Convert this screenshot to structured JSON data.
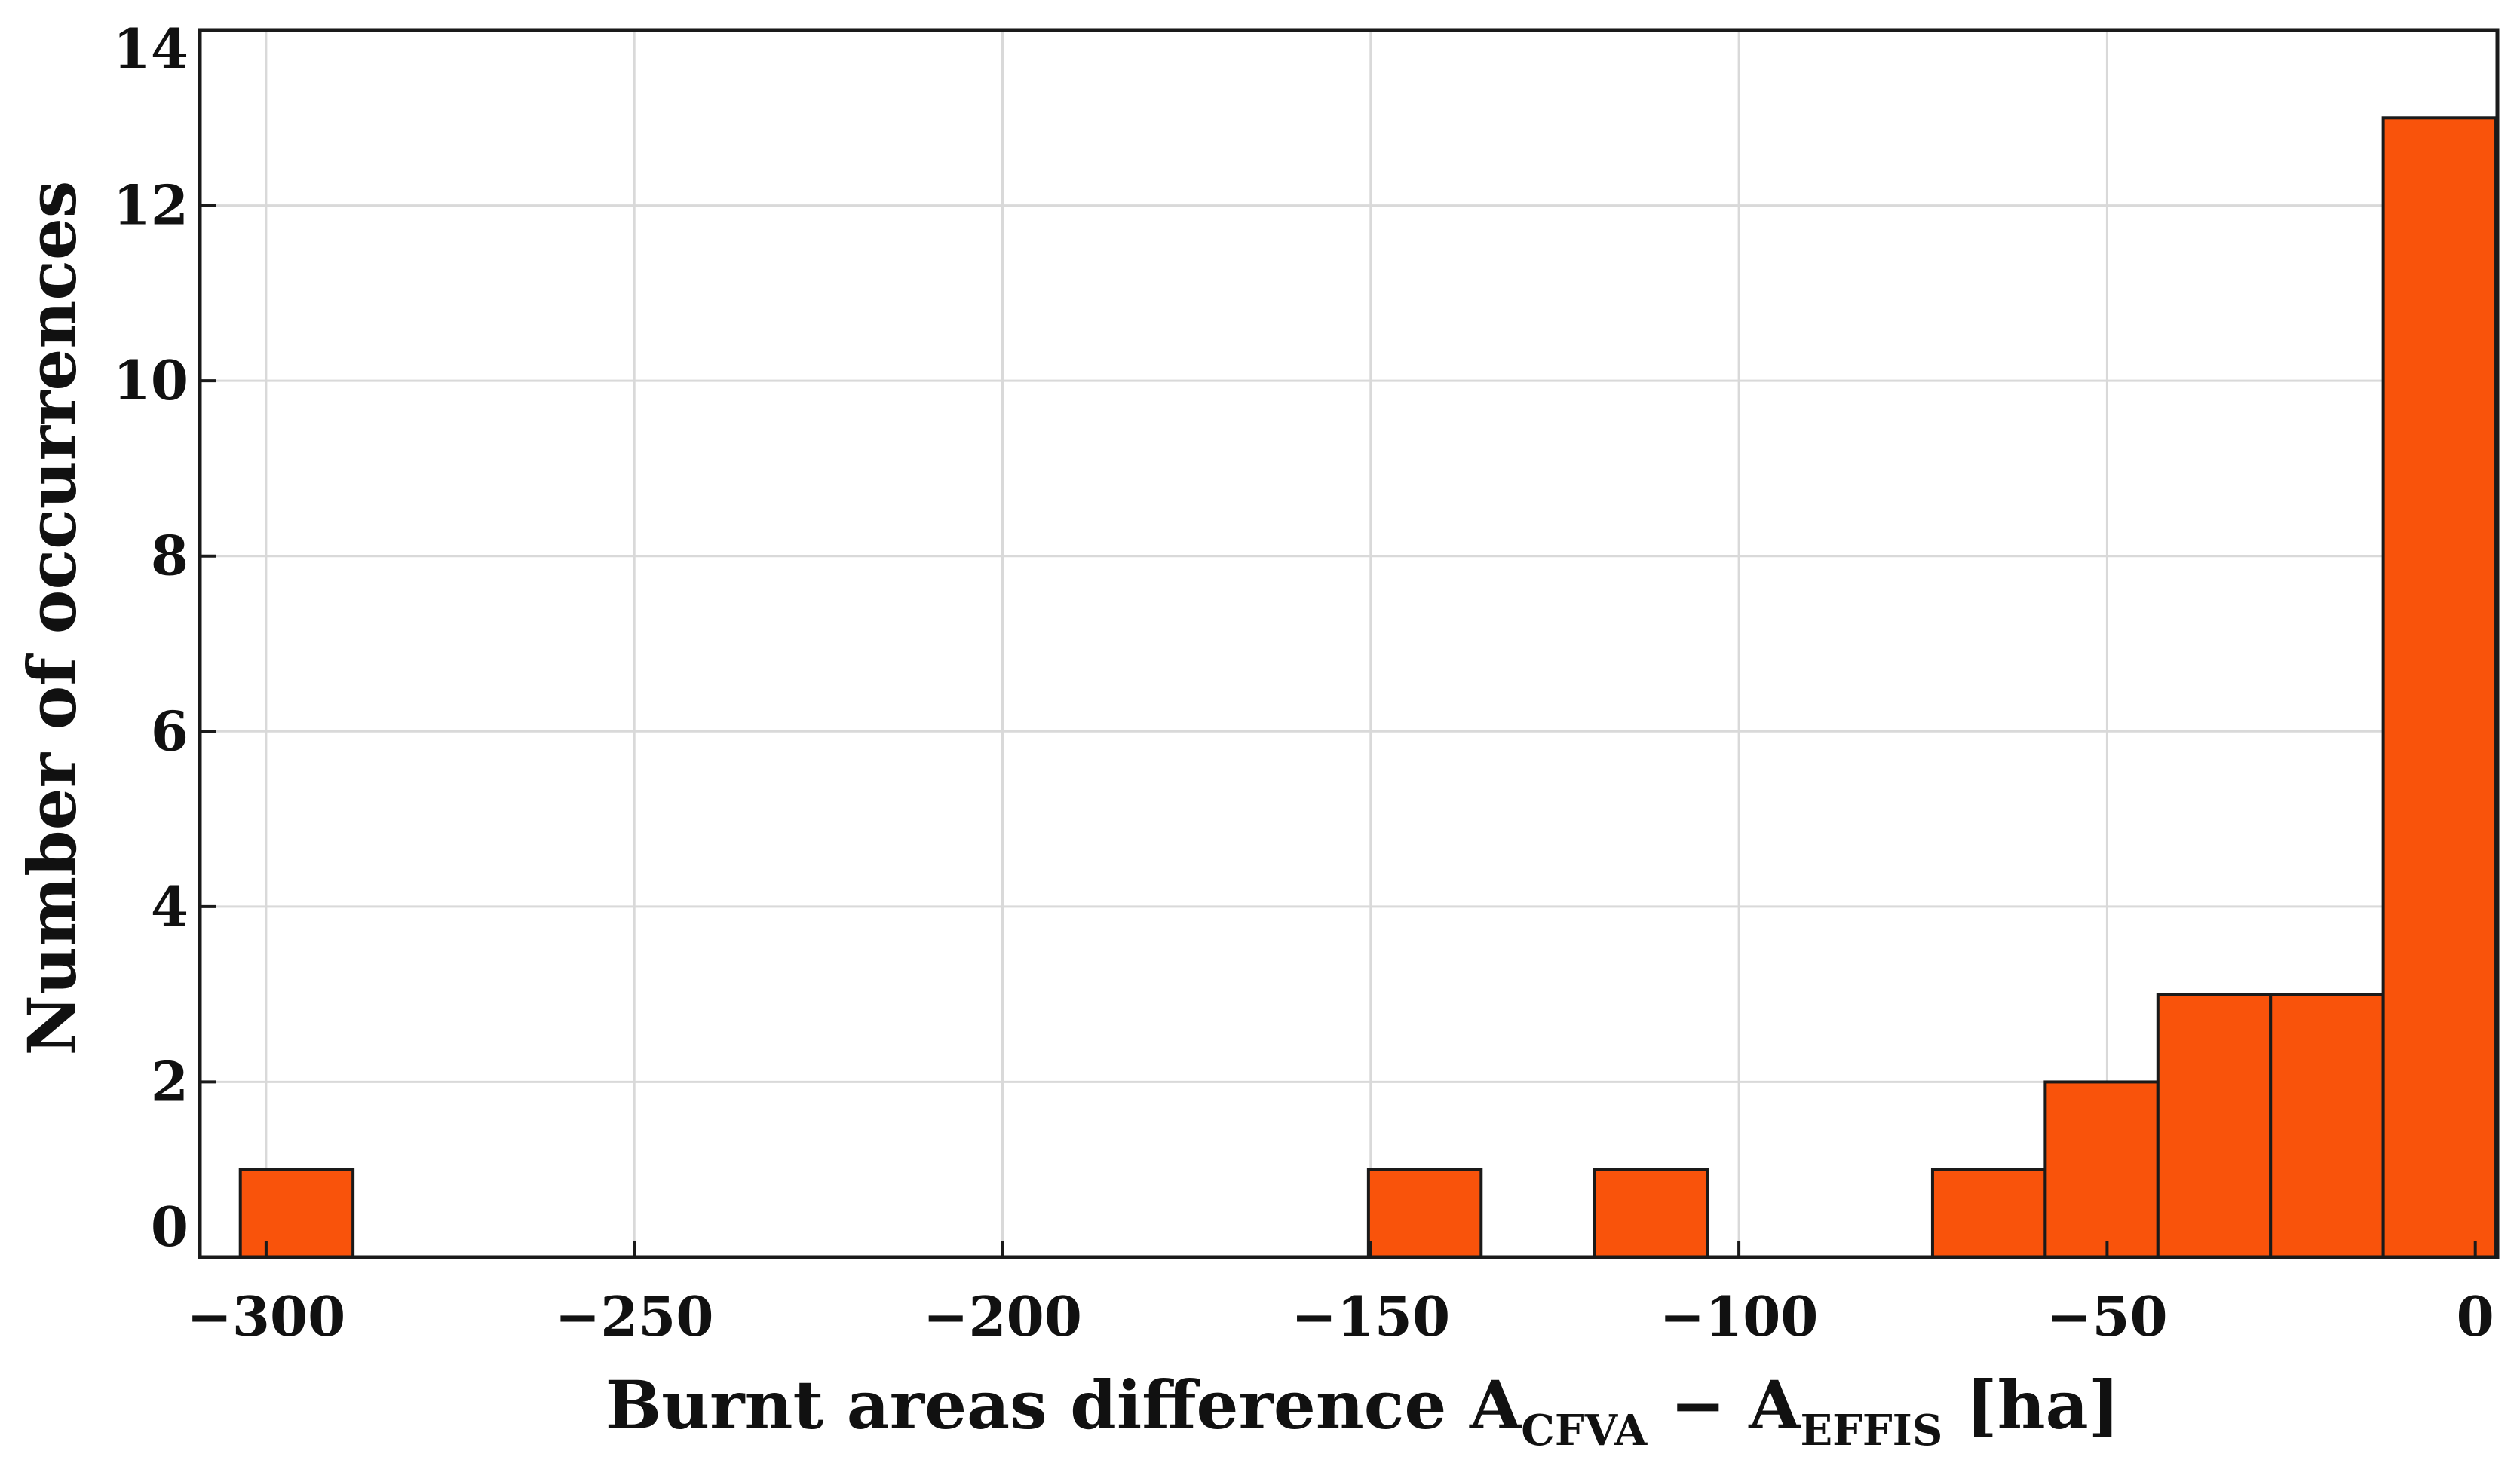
{
  "chart_data": {
    "type": "bar",
    "title": "",
    "xlabel": {
      "prefix": "Burnt areas difference A",
      "sub1": "CFVA",
      "middle": " − A",
      "sub2": "EFFIS",
      "suffix": " [ha]"
    },
    "ylabel": "Number of occurrences",
    "xlim": [
      -309,
      3
    ],
    "ylim": [
      0,
      14
    ],
    "xticks": [
      -300,
      -250,
      -200,
      -150,
      -100,
      -50,
      0
    ],
    "xtick_labels": [
      "−300",
      "−250",
      "−200",
      "−150",
      "−100",
      "−50",
      "0"
    ],
    "yticks": [
      0,
      2,
      4,
      6,
      8,
      10,
      12,
      14
    ],
    "ytick_labels": [
      "0",
      "2",
      "4",
      "6",
      "8",
      "10",
      "12",
      "14"
    ],
    "grid": true,
    "bar_color": "#f9530b",
    "bars": [
      {
        "x0": -303.5,
        "x1": -288.2,
        "value": 1
      },
      {
        "x0": -150.3,
        "x1": -135.0,
        "value": 1
      },
      {
        "x0": -119.6,
        "x1": -104.3,
        "value": 1
      },
      {
        "x0": -73.7,
        "x1": -58.4,
        "value": 1
      },
      {
        "x0": -58.4,
        "x1": -43.1,
        "value": 2
      },
      {
        "x0": -43.1,
        "x1": -27.8,
        "value": 3
      },
      {
        "x0": -27.8,
        "x1": -12.5,
        "value": 3
      },
      {
        "x0": -12.5,
        "x1": 2.8,
        "value": 13
      }
    ]
  }
}
